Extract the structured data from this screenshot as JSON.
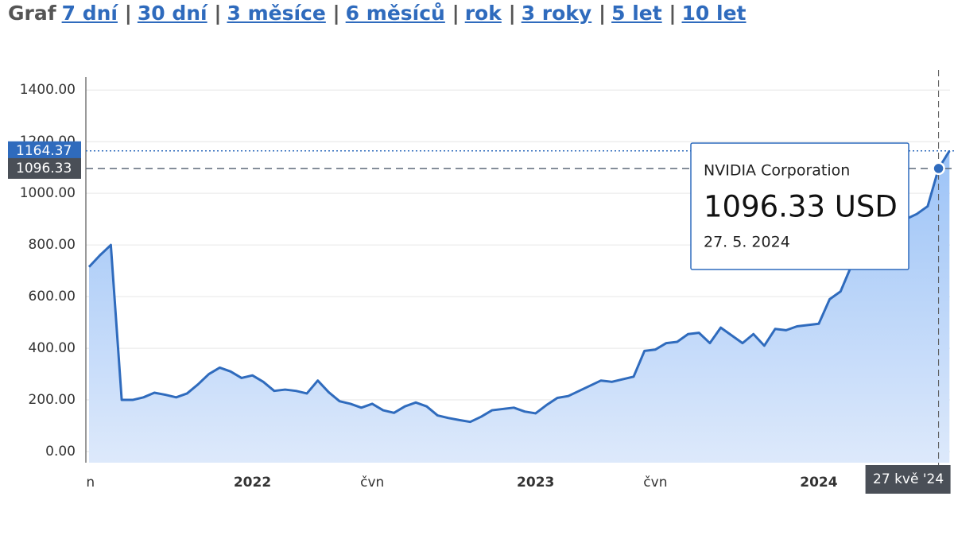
{
  "header": {
    "title": "Graf",
    "separator": "|",
    "links": [
      "7 dní",
      "30 dní",
      "3 měsíce",
      "6 měsíců",
      "rok",
      "3 roky",
      "5 let",
      "10 let"
    ]
  },
  "chart_data": {
    "type": "line",
    "color": "#2f6bbd",
    "grid": true,
    "categories": [
      "čvn",
      null,
      null,
      null,
      null,
      null,
      null,
      null,
      null,
      null,
      null,
      null,
      null,
      null,
      null,
      "2022",
      null,
      null,
      null,
      null,
      null,
      null,
      null,
      null,
      null,
      null,
      "čvn",
      null,
      null,
      null,
      null,
      null,
      null,
      null,
      null,
      null,
      null,
      null,
      null,
      null,
      null,
      "2023",
      null,
      null,
      null,
      null,
      null,
      null,
      null,
      null,
      null,
      null,
      "čvn",
      null,
      null,
      null,
      null,
      null,
      null,
      null,
      null,
      null,
      null,
      null,
      null,
      null,
      null,
      "2024",
      null,
      null,
      null,
      null,
      null,
      null,
      null,
      null,
      null,
      null,
      null,
      null
    ],
    "values": [
      715,
      760,
      800,
      200,
      200,
      210,
      228,
      220,
      210,
      225,
      260,
      300,
      325,
      310,
      285,
      295,
      270,
      235,
      240,
      235,
      225,
      275,
      230,
      195,
      185,
      170,
      185,
      160,
      150,
      175,
      190,
      175,
      140,
      130,
      122,
      115,
      135,
      160,
      165,
      170,
      155,
      148,
      180,
      208,
      215,
      235,
      255,
      275,
      270,
      280,
      290,
      390,
      395,
      420,
      425,
      455,
      460,
      420,
      480,
      450,
      420,
      455,
      410,
      475,
      470,
      485,
      490,
      495,
      590,
      620,
      720,
      790,
      850,
      870,
      880,
      900,
      920,
      950,
      1096.33,
      1164.37
    ],
    "ylim": [
      -43,
      1450
    ],
    "yticks": [
      {
        "value": 0,
        "label": "0.00"
      },
      {
        "value": 200,
        "label": "200.00"
      },
      {
        "value": 400,
        "label": "400.00"
      },
      {
        "value": 600,
        "label": "600.00"
      },
      {
        "value": 800,
        "label": "800.00"
      },
      {
        "value": 1000,
        "label": "1000.00"
      },
      {
        "value": 1200,
        "label": "1200.00"
      },
      {
        "value": 1400,
        "label": "1400.00"
      }
    ],
    "hover_index": 78,
    "crosshair_label": "27 kvě '24",
    "tooltip": {
      "series_name": "NVIDIA Corporation",
      "value_label": "1096.33 USD",
      "date": "27. 5. 2024"
    }
  }
}
